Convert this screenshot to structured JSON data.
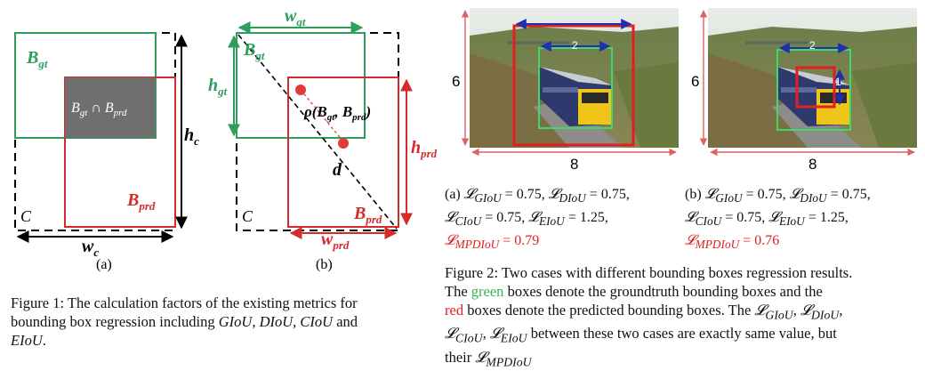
{
  "fig1": {
    "a": {
      "b_gt": "B",
      "b_gt_sub": "gt",
      "intersection": "B",
      "intersection_sub1": "gt",
      "intersection_op": " ∩ B",
      "intersection_sub2": "prd",
      "h_c": "h",
      "h_c_sub": "c",
      "w_c": "w",
      "w_c_sub": "c",
      "c": "C",
      "b_prd": "B",
      "b_prd_sub": "prd",
      "label": "(a)"
    },
    "b": {
      "w_gt": "w",
      "w_gt_sub": "gt",
      "b_gt": "B",
      "b_gt_sub": "gt",
      "h_gt": "h",
      "h_gt_sub": "gt",
      "rho": "ρ(B",
      "rho_sub1": "gt",
      "rho_mid": ", B",
      "rho_sub2": "prd",
      "rho_end": ")",
      "d": "d",
      "h_prd": "h",
      "h_prd_sub": "prd",
      "c": "C",
      "b_prd": "B",
      "b_prd_sub": "prd",
      "w_prd": "w",
      "w_prd_sub": "prd",
      "label": "(b)"
    },
    "caption_line1": "Figure 1: The calculation factors of the existing metrics for",
    "caption_line2": "bounding box regression including",
    "caption_m1": "GIoU",
    "caption_m2": "DIoU",
    "caption_m3": "CIoU",
    "caption_and": "and",
    "caption_m4": "EIoU",
    "caption_end": "."
  },
  "fig2": {
    "left": {
      "height_label": "6",
      "width_label": "8",
      "inner_label": "2"
    },
    "right": {
      "height_label": "6",
      "width_label": "8",
      "inner_label": "2",
      "inner_v_label": "1"
    },
    "loss_a": {
      "prefix": "(a)",
      "giou": "𝓛",
      "giou_sub": "GIoU",
      "giou_val": " = 0.75,",
      "diou": "𝓛",
      "diou_sub": "DIoU",
      "diou_val": " = 0.75,",
      "ciou": "𝓛",
      "ciou_sub": "CIoU",
      "ciou_val": " = 0.75,",
      "eiou": "𝓛",
      "eiou_sub": "EIoU",
      "eiou_val": " = 1.25,",
      "mpdiou": "𝓛",
      "mpdiou_sub": "MPDIoU",
      "mpdiou_val": " = 0.79"
    },
    "loss_b": {
      "prefix": "(b)",
      "giou": "𝓛",
      "giou_sub": "GIoU",
      "giou_val": " = 0.75,",
      "diou": "𝓛",
      "diou_sub": "DIoU",
      "diou_val": " = 0.75,",
      "ciou": "𝓛",
      "ciou_sub": "CIoU",
      "ciou_val": " = 0.75,",
      "eiou": "𝓛",
      "eiou_sub": "EIoU",
      "eiou_val": " = 1.25,",
      "mpdiou": "𝓛",
      "mpdiou_sub": "MPDIoU",
      "mpdiou_val": " = 0.76"
    },
    "caption": {
      "l1": "Figure 2: Two cases with different bounding boxes regression results.",
      "l2a": "The",
      "green_word": "green",
      "l2b": "boxes denote the groundtruth bounding boxes and the",
      "red_word": "red",
      "l3b": "boxes denote the predicted bounding boxes. The",
      "s1": "GIoU",
      "s2": "DIoU",
      "s3": "CIoU",
      "s4": "EIoU",
      "l4b": "between these two cases are exactly same value, but",
      "l5a": "their",
      "s5": "MPDIoU"
    },
    "colors": {
      "green": "#2fb84a",
      "red": "#e02020",
      "blue": "#1f2fae"
    }
  }
}
